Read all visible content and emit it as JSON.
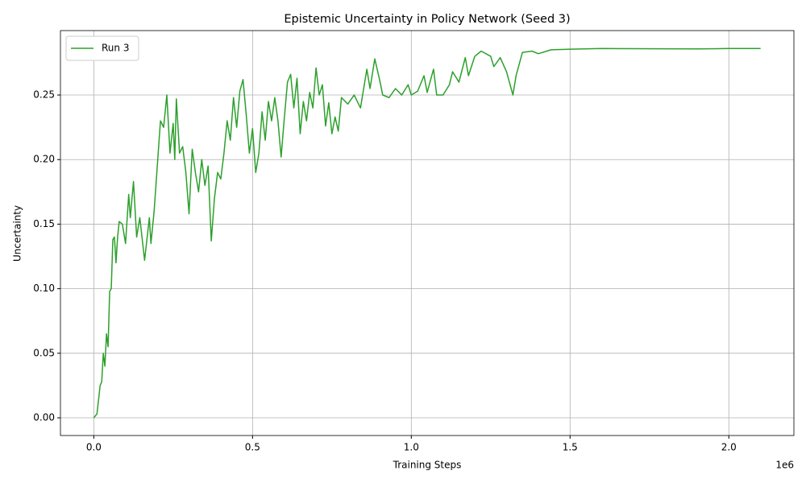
{
  "chart_data": {
    "type": "line",
    "title": "Epistemic Uncertainty in Policy Network (Seed 3)",
    "xlabel": "Training Steps",
    "ylabel": "Uncertainty",
    "x_offset": "1e6",
    "x": [
      0,
      10000,
      20000,
      25000,
      30000,
      35000,
      40000,
      45000,
      50000,
      55000,
      60000,
      65000,
      70000,
      75000,
      80000,
      90000,
      100000,
      110000,
      115000,
      125000,
      135000,
      145000,
      160000,
      175000,
      180000,
      190000,
      200000,
      210000,
      220000,
      230000,
      240000,
      250000,
      255000,
      260000,
      270000,
      280000,
      290000,
      300000,
      310000,
      320000,
      330000,
      340000,
      350000,
      360000,
      370000,
      380000,
      390000,
      400000,
      410000,
      420000,
      430000,
      440000,
      450000,
      460000,
      470000,
      480000,
      490000,
      500000,
      510000,
      520000,
      530000,
      540000,
      550000,
      560000,
      570000,
      580000,
      590000,
      600000,
      610000,
      620000,
      630000,
      640000,
      650000,
      660000,
      670000,
      680000,
      690000,
      700000,
      710000,
      720000,
      730000,
      740000,
      750000,
      760000,
      770000,
      780000,
      800000,
      820000,
      840000,
      860000,
      870000,
      885000,
      900000,
      910000,
      930000,
      950000,
      970000,
      990000,
      1000000,
      1020000,
      1040000,
      1050000,
      1070000,
      1080000,
      1100000,
      1120000,
      1130000,
      1150000,
      1170000,
      1180000,
      1200000,
      1220000,
      1250000,
      1260000,
      1280000,
      1300000,
      1320000,
      1330000,
      1350000,
      1380000,
      1400000,
      1440000,
      1500000,
      1600000,
      1800000,
      1900000,
      2000000,
      2100000
    ],
    "series": [
      {
        "name": "Run 3",
        "color": "#2ca02c",
        "values": [
          0.0,
          0.003,
          0.025,
          0.028,
          0.05,
          0.04,
          0.065,
          0.055,
          0.098,
          0.1,
          0.138,
          0.14,
          0.12,
          0.14,
          0.152,
          0.15,
          0.135,
          0.173,
          0.155,
          0.183,
          0.14,
          0.155,
          0.122,
          0.155,
          0.135,
          0.16,
          0.195,
          0.23,
          0.225,
          0.25,
          0.205,
          0.228,
          0.2,
          0.247,
          0.205,
          0.21,
          0.19,
          0.158,
          0.208,
          0.19,
          0.175,
          0.2,
          0.18,
          0.195,
          0.137,
          0.17,
          0.19,
          0.185,
          0.205,
          0.23,
          0.215,
          0.248,
          0.225,
          0.253,
          0.262,
          0.235,
          0.205,
          0.224,
          0.19,
          0.205,
          0.237,
          0.215,
          0.245,
          0.23,
          0.248,
          0.23,
          0.202,
          0.232,
          0.26,
          0.266,
          0.24,
          0.263,
          0.22,
          0.245,
          0.23,
          0.252,
          0.24,
          0.271,
          0.25,
          0.258,
          0.226,
          0.244,
          0.22,
          0.233,
          0.222,
          0.248,
          0.243,
          0.25,
          0.24,
          0.27,
          0.255,
          0.278,
          0.262,
          0.25,
          0.248,
          0.255,
          0.25,
          0.258,
          0.25,
          0.253,
          0.265,
          0.252,
          0.27,
          0.25,
          0.25,
          0.258,
          0.268,
          0.26,
          0.279,
          0.265,
          0.28,
          0.284,
          0.28,
          0.272,
          0.279,
          0.268,
          0.25,
          0.265,
          0.283,
          0.284,
          0.282,
          0.285,
          0.2855,
          0.286,
          0.2858,
          0.2857,
          0.286,
          0.286
        ]
      }
    ],
    "xlim": [
      -105000,
      2205000
    ],
    "ylim": [
      -0.0137,
      0.2999
    ],
    "xticks": [
      {
        "value": 0,
        "label": "0.0"
      },
      {
        "value": 500000,
        "label": "0.5"
      },
      {
        "value": 1000000,
        "label": "1.0"
      },
      {
        "value": 1500000,
        "label": "1.5"
      },
      {
        "value": 2000000,
        "label": "2.0"
      }
    ],
    "yticks": [
      {
        "value": 0,
        "label": "0.00"
      },
      {
        "value": 0.05,
        "label": "0.05"
      },
      {
        "value": 0.1,
        "label": "0.10"
      },
      {
        "value": 0.15,
        "label": "0.15"
      },
      {
        "value": 0.2,
        "label": "0.20"
      },
      {
        "value": 0.25,
        "label": "0.25"
      }
    ],
    "grid": true,
    "legend": "upper-left"
  }
}
